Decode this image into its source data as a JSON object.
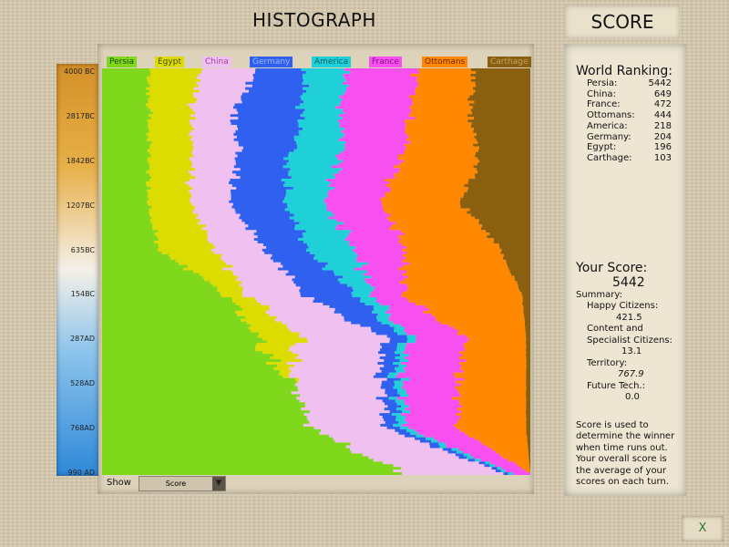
{
  "header": {
    "title": "HISTOGRAPH",
    "score_tab": "SCORE"
  },
  "controls": {
    "show_label": "Show",
    "show_value": "Score",
    "close_label": "X"
  },
  "ranking": {
    "title": "World Ranking:",
    "items": [
      {
        "name": "Persia:",
        "score": "5442"
      },
      {
        "name": "China:",
        "score": "649"
      },
      {
        "name": "France:",
        "score": "472"
      },
      {
        "name": "Ottomans:",
        "score": "444"
      },
      {
        "name": "America:",
        "score": "218"
      },
      {
        "name": "Germany:",
        "score": "204"
      },
      {
        "name": "Egypt:",
        "score": "196"
      },
      {
        "name": "Carthage:",
        "score": "103"
      }
    ]
  },
  "your_score": {
    "title": "Your Score:",
    "value": "5442",
    "summary": "Summary:",
    "happy_label": "Happy Citizens:",
    "happy": "421.5",
    "content_label1": "Content and",
    "content_label2": "Specialist Citizens:",
    "content": "13.1",
    "territory_label": "Territory:",
    "territory": "767.9",
    "future_label": "Future Tech.:",
    "future": "0.0",
    "note": "Score is used to determine the winner when time runs out. Your overall score is the average of your scores on each turn."
  },
  "chart_data": {
    "type": "area",
    "stacked": true,
    "normalized": true,
    "orientation": "vertical-time",
    "time_ticks": [
      "4000 BC",
      "2817BC",
      "1842BC",
      "1207BC",
      "635BC",
      "154BC",
      "287AD",
      "528AD",
      "768AD",
      "990 AD"
    ],
    "series": [
      {
        "name": "Persia",
        "color": "#7fd81c",
        "text": "#1a4a00",
        "values": [
          11,
          11,
          11,
          11,
          13,
          29,
          36,
          44,
          51,
          70
        ]
      },
      {
        "name": "Egypt",
        "color": "#dcdc00",
        "text": "#4a4a00",
        "values": [
          12,
          10,
          10,
          10,
          13,
          5,
          10,
          0,
          0,
          0
        ]
      },
      {
        "name": "China",
        "color": "#f0c0f0",
        "text": "#a040a0",
        "values": [
          13,
          10,
          11,
          9,
          12,
          13,
          20,
          21,
          17,
          24
        ]
      },
      {
        "name": "Germany",
        "color": "#3060f0",
        "text": "#a0b8ff",
        "values": [
          11,
          16,
          12,
          13,
          10,
          12,
          4,
          3,
          3,
          1
        ]
      },
      {
        "name": "America",
        "color": "#20d0d8",
        "text": "#086068",
        "values": [
          10,
          9,
          12,
          9,
          11,
          4,
          2,
          2,
          2,
          1
        ]
      },
      {
        "name": "France",
        "color": "#f850f0",
        "text": "#801080",
        "values": [
          17,
          16,
          14,
          13,
          12,
          7,
          13,
          13,
          12,
          4
        ]
      },
      {
        "name": "Ottomans",
        "color": "#ff8800",
        "text": "#6a2a00",
        "values": [
          13,
          14,
          18,
          19,
          22,
          28,
          14,
          16,
          16,
          0
        ]
      },
      {
        "name": "Carthage",
        "color": "#8a6010",
        "text": "#c0a060",
        "values": [
          13,
          14,
          12,
          16,
          7,
          2,
          1,
          1,
          1,
          0
        ]
      }
    ]
  }
}
